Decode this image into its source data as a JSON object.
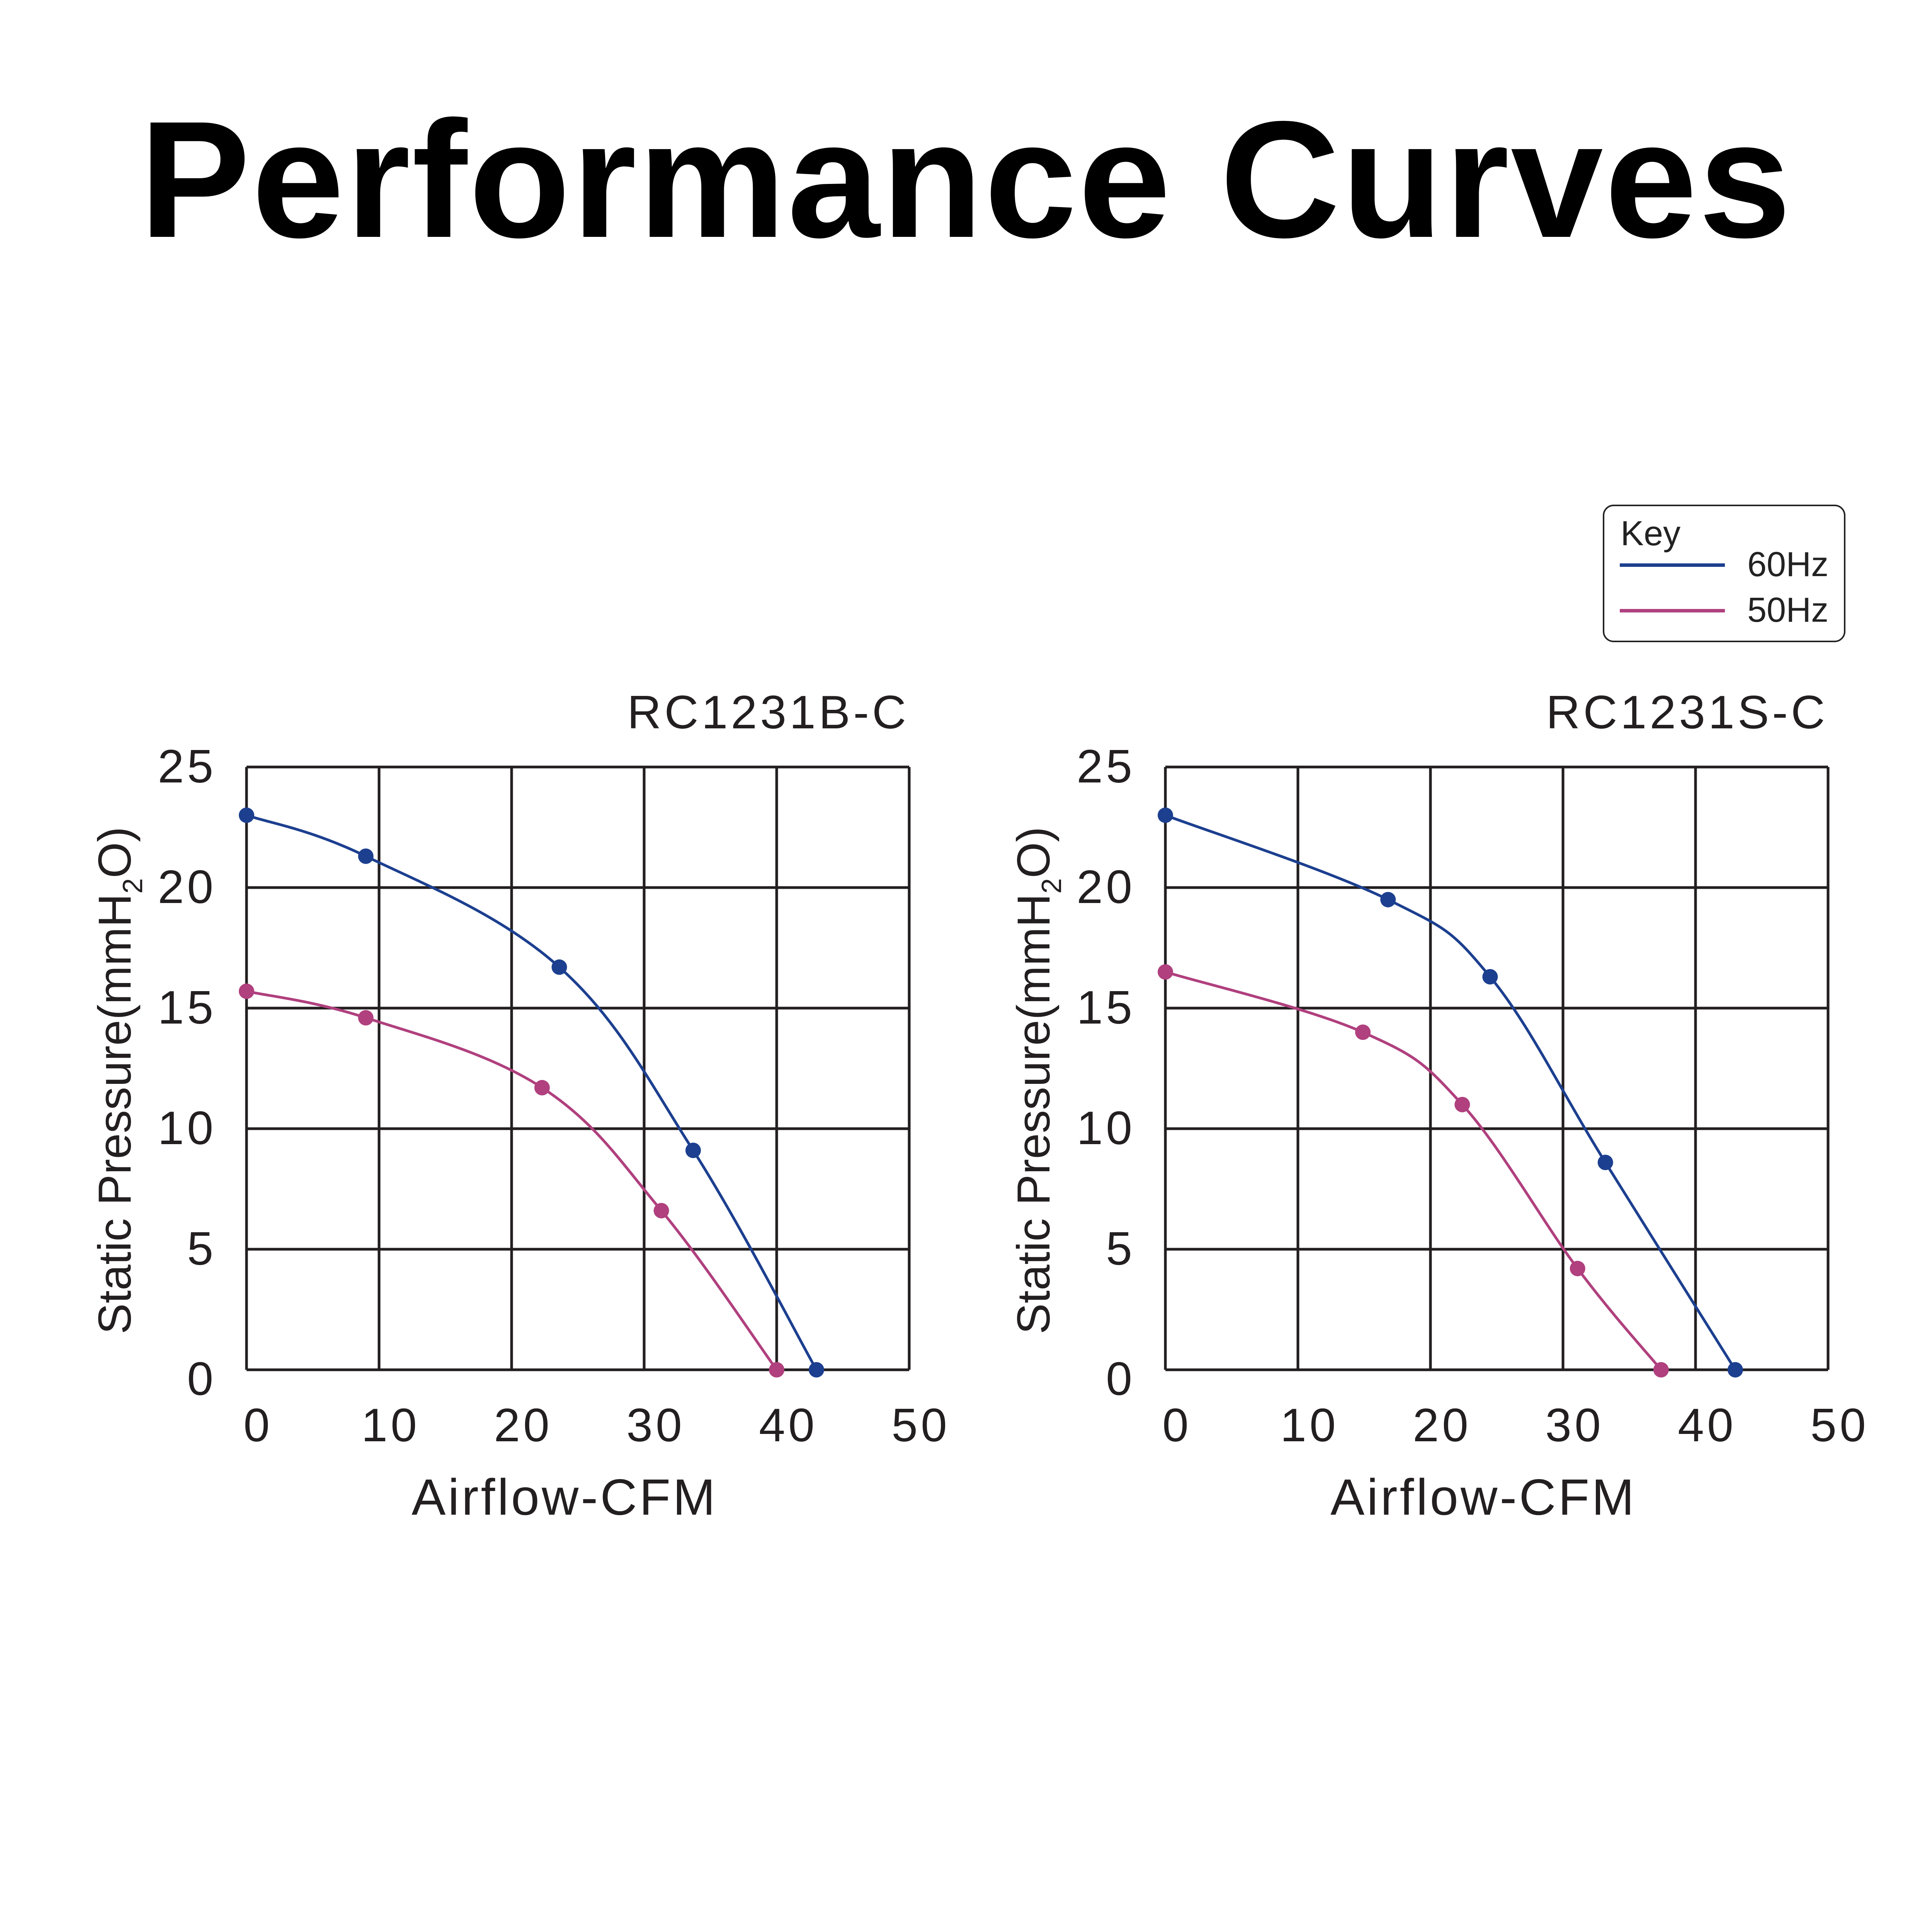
{
  "title": "Performance Curves",
  "legend": {
    "title": "Key",
    "items": [
      {
        "label": "60Hz",
        "color": "#1c3f8f"
      },
      {
        "label": "50Hz",
        "color": "#b0407e"
      }
    ]
  },
  "chart_data": [
    {
      "type": "line",
      "title": "RC1231B-C",
      "xlabel": "Airflow-CFM",
      "ylabel": "Static Pressure(mmH2O)",
      "xlim": [
        0,
        50
      ],
      "ylim": [
        0,
        25
      ],
      "xticks": [
        0,
        10,
        20,
        30,
        40,
        50
      ],
      "yticks": [
        0,
        5,
        10,
        15,
        20,
        25
      ],
      "grid": true,
      "series": [
        {
          "name": "60Hz",
          "color": "#1c3f8f",
          "x": [
            0,
            9,
            23.6,
            33.7,
            43
          ],
          "y": [
            23,
            21.3,
            16.7,
            9.1,
            0
          ]
        },
        {
          "name": "50Hz",
          "color": "#b0407e",
          "x": [
            0,
            9,
            22.3,
            31.3,
            40
          ]
        },
        {
          "name": "50Hz",
          "color": "#b0407e",
          "x": [
            0,
            9,
            22.3,
            31.3,
            40
          ],
          "y": [
            15.7,
            14.6,
            11.7,
            6.6,
            0
          ]
        }
      ]
    },
    {
      "type": "line",
      "title": "RC1231S-C",
      "xlabel": "Airflow-CFM",
      "ylabel": "Static Pressure(mmH2O)",
      "xlim": [
        0,
        50
      ],
      "ylim": [
        0,
        25
      ],
      "xticks": [
        0,
        10,
        20,
        30,
        40,
        50
      ],
      "yticks": [
        0,
        5,
        10,
        15,
        20,
        25
      ],
      "grid": true,
      "series": [
        {
          "name": "60Hz",
          "color": "#1c3f8f",
          "x": [
            0,
            16.8,
            24.5,
            33.2,
            43
          ],
          "y": [
            23,
            19.5,
            16.3,
            8.6,
            0
          ]
        },
        {
          "name": "50Hz",
          "color": "#b0407e",
          "x": [
            0,
            14.9,
            22.4,
            31.1,
            37.4
          ],
          "y": [
            16.5,
            14,
            11,
            4.2,
            0
          ]
        }
      ]
    }
  ]
}
